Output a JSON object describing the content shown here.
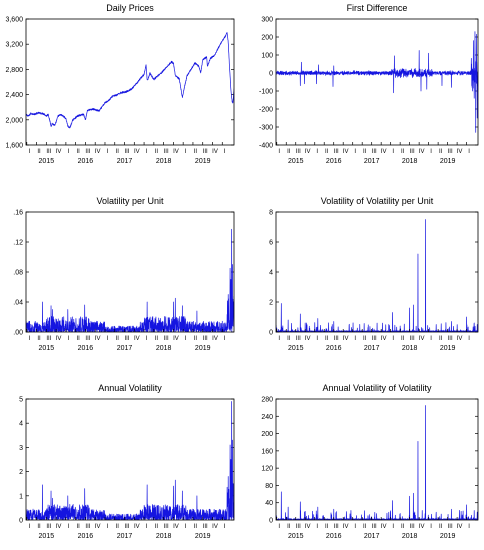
{
  "figure": {
    "series_color": "#1515e0"
  },
  "chart_data": [
    {
      "type": "line",
      "title": "Daily Prices",
      "ylim": [
        1600,
        3600
      ],
      "yticks": [
        1600,
        2000,
        2400,
        2800,
        3200,
        3600
      ],
      "ytick_labels": [
        "1,600",
        "2,000",
        "2,400",
        "2,800",
        "3,200",
        "3,600"
      ],
      "x_start": 2014.98,
      "x_end": 2020.3,
      "years": [
        "2015",
        "2016",
        "2017",
        "2018",
        "2019"
      ],
      "quarter_labels": [
        "I",
        "II",
        "III",
        "IV"
      ],
      "series": [
        {
          "style": "price",
          "values": [
            [
              2014.98,
              2080
            ],
            [
              2015.05,
              2060
            ],
            [
              2015.1,
              2100
            ],
            [
              2015.2,
              2090
            ],
            [
              2015.3,
              2110
            ],
            [
              2015.4,
              2100
            ],
            [
              2015.45,
              2090
            ],
            [
              2015.5,
              2060
            ],
            [
              2015.55,
              2090
            ],
            [
              2015.62,
              1900
            ],
            [
              2015.65,
              1940
            ],
            [
              2015.72,
              1910
            ],
            [
              2015.8,
              2060
            ],
            [
              2015.87,
              2080
            ],
            [
              2015.95,
              2050
            ],
            [
              2016.0,
              2020
            ],
            [
              2016.05,
              1900
            ],
            [
              2016.1,
              1870
            ],
            [
              2016.18,
              2000
            ],
            [
              2016.3,
              2060
            ],
            [
              2016.45,
              2090
            ],
            [
              2016.5,
              2000
            ],
            [
              2016.55,
              2150
            ],
            [
              2016.7,
              2170
            ],
            [
              2016.85,
              2140
            ],
            [
              2016.92,
              2200
            ],
            [
              2017.0,
              2270
            ],
            [
              2017.1,
              2310
            ],
            [
              2017.2,
              2380
            ],
            [
              2017.3,
              2390
            ],
            [
              2017.4,
              2430
            ],
            [
              2017.5,
              2440
            ],
            [
              2017.6,
              2460
            ],
            [
              2017.7,
              2500
            ],
            [
              2017.8,
              2570
            ],
            [
              2017.9,
              2650
            ],
            [
              2018.0,
              2720
            ],
            [
              2018.05,
              2870
            ],
            [
              2018.08,
              2620
            ],
            [
              2018.15,
              2740
            ],
            [
              2018.25,
              2640
            ],
            [
              2018.35,
              2700
            ],
            [
              2018.45,
              2750
            ],
            [
              2018.55,
              2820
            ],
            [
              2018.7,
              2920
            ],
            [
              2018.75,
              2900
            ],
            [
              2018.8,
              2700
            ],
            [
              2018.9,
              2650
            ],
            [
              2018.98,
              2350
            ],
            [
              2019.02,
              2480
            ],
            [
              2019.1,
              2700
            ],
            [
              2019.2,
              2800
            ],
            [
              2019.3,
              2900
            ],
            [
              2019.4,
              2850
            ],
            [
              2019.45,
              2750
            ],
            [
              2019.5,
              2950
            ],
            [
              2019.6,
              3000
            ],
            [
              2019.62,
              2850
            ],
            [
              2019.7,
              2980
            ],
            [
              2019.8,
              3020
            ],
            [
              2019.9,
              3140
            ],
            [
              2020.0,
              3250
            ],
            [
              2020.08,
              3330
            ],
            [
              2020.12,
              3380
            ],
            [
              2020.15,
              3250
            ],
            [
              2020.18,
              2900
            ],
            [
              2020.22,
              2480
            ],
            [
              2020.25,
              2300
            ],
            [
              2020.27,
              2250
            ],
            [
              2020.3,
              2500
            ]
          ]
        }
      ]
    },
    {
      "type": "line",
      "title": "First Difference",
      "ylim": [
        -400,
        300
      ],
      "yticks": [
        -400,
        -300,
        -200,
        -100,
        0,
        100,
        200,
        300
      ],
      "ytick_labels": [
        "-400",
        "-300",
        "-200",
        "-100",
        "0",
        "100",
        "200",
        "300"
      ],
      "x_start": 2014.98,
      "x_end": 2020.3,
      "years": [
        "2015",
        "2016",
        "2017",
        "2018",
        "2019"
      ],
      "quarter_labels": [
        "I",
        "II",
        "III",
        "IV"
      ],
      "series": [
        {
          "style": "diff",
          "spikes": [
            [
              2015.62,
              -70
            ],
            [
              2015.65,
              60
            ],
            [
              2015.73,
              -60
            ],
            [
              2016.05,
              -60
            ],
            [
              2016.1,
              45
            ],
            [
              2016.48,
              -75
            ],
            [
              2016.5,
              40
            ],
            [
              2018.08,
              -110
            ],
            [
              2018.1,
              95
            ],
            [
              2018.75,
              125
            ],
            [
              2018.8,
              -100
            ],
            [
              2018.95,
              -90
            ],
            [
              2019.0,
              110
            ],
            [
              2019.35,
              -70
            ],
            [
              2019.6,
              -80
            ],
            [
              2020.15,
              -100
            ],
            [
              2020.18,
              180
            ],
            [
              2020.2,
              -140
            ],
            [
              2020.22,
              230
            ],
            [
              2020.24,
              -330
            ],
            [
              2020.26,
              215
            ],
            [
              2020.28,
              -250
            ]
          ]
        }
      ]
    },
    {
      "type": "line",
      "title": "Volatility per Unit",
      "ylim": [
        0,
        0.16
      ],
      "yticks": [
        0,
        0.04,
        0.08,
        0.12,
        0.16
      ],
      "ytick_labels": [
        ".00",
        ".04",
        ".08",
        ".12",
        ".16"
      ],
      "x_start": 2014.98,
      "x_end": 2020.3,
      "years": [
        "2015",
        "2016",
        "2017",
        "2018",
        "2019"
      ],
      "quarter_labels": [
        "I",
        "II",
        "III",
        "IV"
      ],
      "series": [
        {
          "style": "vol",
          "spikes": [
            [
              2015.4,
              0.04
            ],
            [
              2015.62,
              0.035
            ],
            [
              2015.66,
              0.03
            ],
            [
              2016.05,
              0.03
            ],
            [
              2016.48,
              0.036
            ],
            [
              2018.08,
              0.04
            ],
            [
              2018.75,
              0.04
            ],
            [
              2018.8,
              0.045
            ],
            [
              2018.98,
              0.035
            ],
            [
              2019.35,
              0.028
            ],
            [
              2020.15,
              0.05
            ],
            [
              2020.2,
              0.085
            ],
            [
              2020.22,
              0.07
            ],
            [
              2020.24,
              0.137
            ],
            [
              2020.26,
              0.09
            ],
            [
              2020.28,
              0.04
            ]
          ]
        }
      ]
    },
    {
      "type": "line",
      "title": "Volatility of Volatility per Unit",
      "ylim": [
        0,
        8
      ],
      "yticks": [
        0,
        2,
        4,
        6,
        8
      ],
      "ytick_labels": [
        "0",
        "2",
        "4",
        "6",
        "8"
      ],
      "x_start": 2014.98,
      "x_end": 2020.3,
      "years": [
        "2015",
        "2016",
        "2017",
        "2018",
        "2019"
      ],
      "quarter_labels": [
        "I",
        "II",
        "III",
        "IV"
      ],
      "series": [
        {
          "style": "spiky",
          "spikes": [
            [
              2015.12,
              1.9
            ],
            [
              2015.3,
              0.8
            ],
            [
              2015.62,
              1.2
            ],
            [
              2015.75,
              0.6
            ],
            [
              2016.08,
              0.9
            ],
            [
              2016.5,
              0.7
            ],
            [
              2017.4,
              0.3
            ],
            [
              2017.95,
              0.5
            ],
            [
              2018.05,
              1.3
            ],
            [
              2018.25,
              0.4
            ],
            [
              2018.5,
              1.6
            ],
            [
              2018.6,
              1.8
            ],
            [
              2018.72,
              5.2
            ],
            [
              2018.92,
              7.5
            ],
            [
              2019.2,
              0.5
            ],
            [
              2019.6,
              0.7
            ],
            [
              2020.0,
              1.0
            ],
            [
              2020.2,
              0.6
            ],
            [
              2020.28,
              0.5
            ]
          ]
        }
      ]
    },
    {
      "type": "line",
      "title": "Annual Volatility",
      "ylim": [
        0,
        5
      ],
      "yticks": [
        0,
        1,
        2,
        3,
        4,
        5
      ],
      "ytick_labels": [
        "0",
        "1",
        "2",
        "3",
        "4",
        "5"
      ],
      "x_start": 2014.98,
      "x_end": 2020.3,
      "years": [
        "2015",
        "2016",
        "2017",
        "2018",
        "2019"
      ],
      "quarter_labels": [
        "I",
        "II",
        "III",
        "IV"
      ],
      "series": [
        {
          "style": "vol",
          "spikes": [
            [
              2015.4,
              1.45
            ],
            [
              2015.62,
              1.2
            ],
            [
              2015.66,
              0.9
            ],
            [
              2016.05,
              1.0
            ],
            [
              2016.48,
              1.3
            ],
            [
              2018.08,
              1.45
            ],
            [
              2018.75,
              1.4
            ],
            [
              2018.8,
              1.65
            ],
            [
              2018.98,
              1.2
            ],
            [
              2019.35,
              1.0
            ],
            [
              2020.15,
              1.8
            ],
            [
              2020.2,
              3.1
            ],
            [
              2020.22,
              2.5
            ],
            [
              2020.24,
              4.9
            ],
            [
              2020.26,
              3.3
            ],
            [
              2020.28,
              1.5
            ]
          ]
        }
      ]
    },
    {
      "type": "line",
      "title": "Annual Volatility of Volatility",
      "ylim": [
        0,
        280
      ],
      "yticks": [
        0,
        40,
        80,
        120,
        160,
        200,
        240,
        280
      ],
      "ytick_labels": [
        "0",
        "40",
        "80",
        "120",
        "160",
        "200",
        "240",
        "280"
      ],
      "x_start": 2014.98,
      "x_end": 2020.3,
      "years": [
        "2015",
        "2016",
        "2017",
        "2018",
        "2019"
      ],
      "quarter_labels": [
        "I",
        "II",
        "III",
        "IV"
      ],
      "series": [
        {
          "style": "spiky",
          "spikes": [
            [
              2015.12,
              65
            ],
            [
              2015.3,
              30
            ],
            [
              2015.62,
              42
            ],
            [
              2015.75,
              20
            ],
            [
              2016.08,
              30
            ],
            [
              2016.5,
              25
            ],
            [
              2017.4,
              10
            ],
            [
              2017.95,
              18
            ],
            [
              2018.05,
              45
            ],
            [
              2018.25,
              15
            ],
            [
              2018.5,
              55
            ],
            [
              2018.6,
              62
            ],
            [
              2018.72,
              182
            ],
            [
              2018.92,
              265
            ],
            [
              2019.2,
              18
            ],
            [
              2019.6,
              25
            ],
            [
              2020.0,
              35
            ],
            [
              2020.2,
              22
            ],
            [
              2020.28,
              18
            ]
          ]
        }
      ]
    }
  ]
}
